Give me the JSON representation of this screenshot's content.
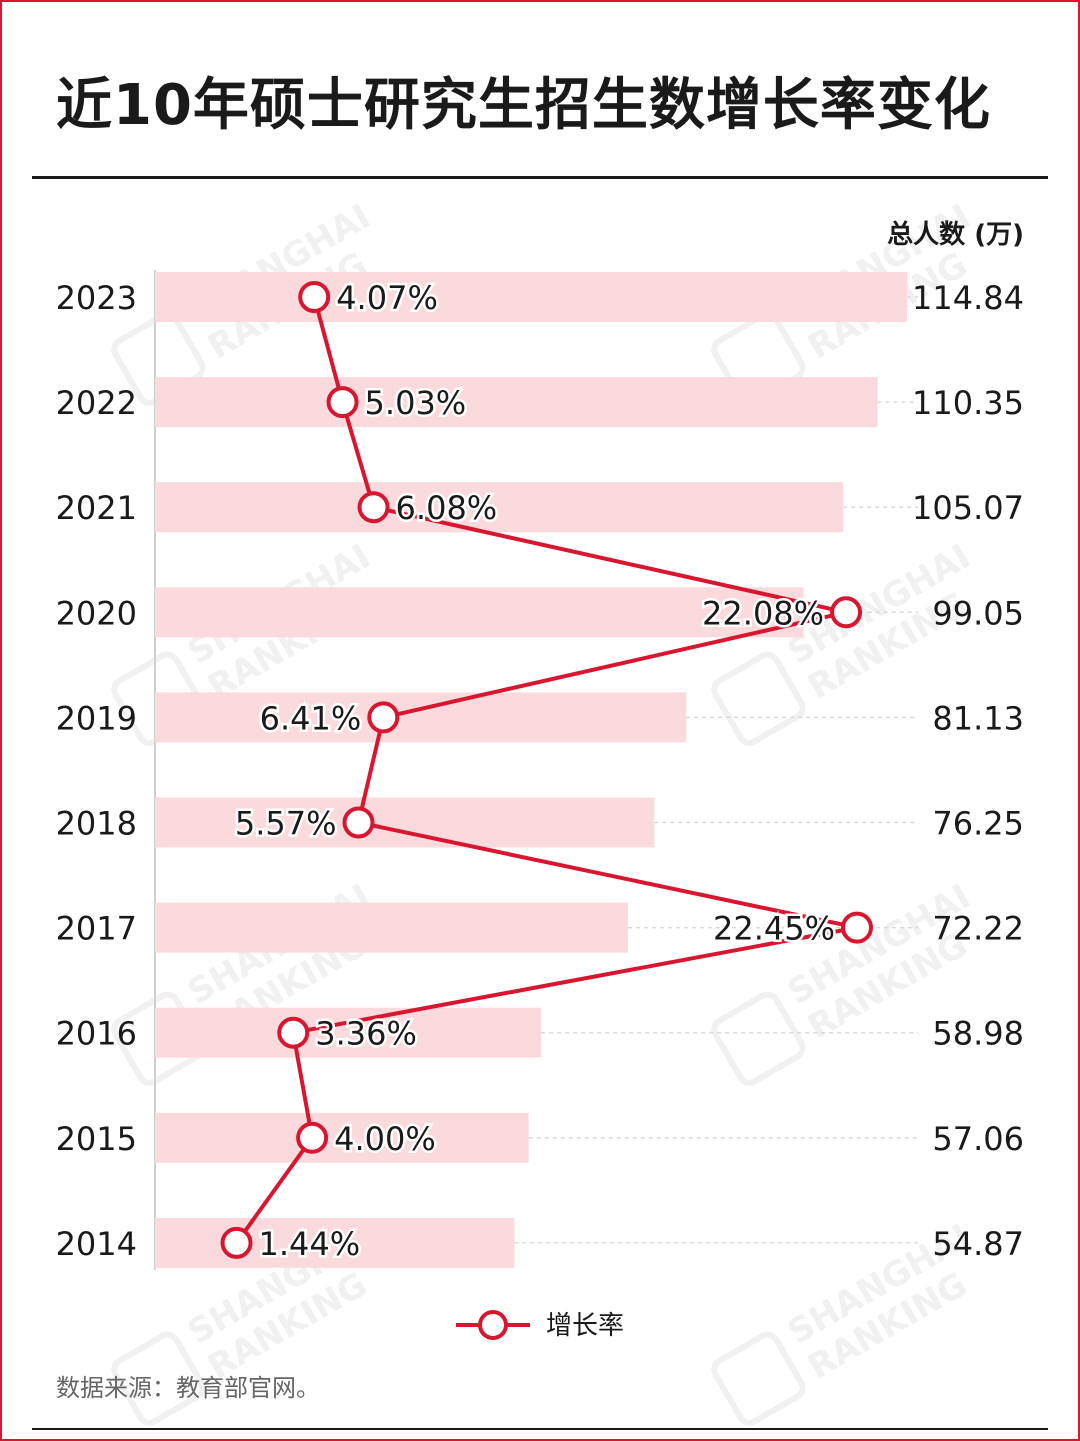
{
  "title": "近10年硕士研究生招生数增长率变化",
  "source": "数据来源：教育部官网。",
  "watermark": {
    "line1": "SHANGHAI",
    "line2": "RANKING"
  },
  "colors": {
    "bar": "#fadadd",
    "line": "#d9162f",
    "text": "#1a1a1a",
    "frame": "#d9162f"
  },
  "chart_data": {
    "type": "bar",
    "orientation": "horizontal",
    "categories": [
      "2023",
      "2022",
      "2021",
      "2020",
      "2019",
      "2018",
      "2017",
      "2016",
      "2015",
      "2014"
    ],
    "value_axis_title": "总人数 (万)",
    "total_labels": [
      "114.84",
      "110.35",
      "105.07",
      "99.05",
      "81.13",
      "76.25",
      "72.22",
      "58.98",
      "57.06",
      "54.87"
    ],
    "series": [
      {
        "values": [
          114.84,
          110.35,
          105.07,
          99.05,
          81.13,
          76.25,
          72.22,
          58.98,
          57.06,
          54.87
        ]
      },
      {
        "name": "增长率",
        "type": "line",
        "values": [
          4.07,
          5.03,
          6.08,
          22.08,
          6.41,
          5.57,
          22.45,
          3.36,
          4.0,
          1.44
        ],
        "labels": [
          "4.07%",
          "5.03%",
          "6.08%",
          "22.08%",
          "6.41%",
          "5.57%",
          "22.45%",
          "3.36%",
          "4.00%",
          "1.44%"
        ]
      }
    ],
    "legend": "bottom-center",
    "grid": false
  }
}
